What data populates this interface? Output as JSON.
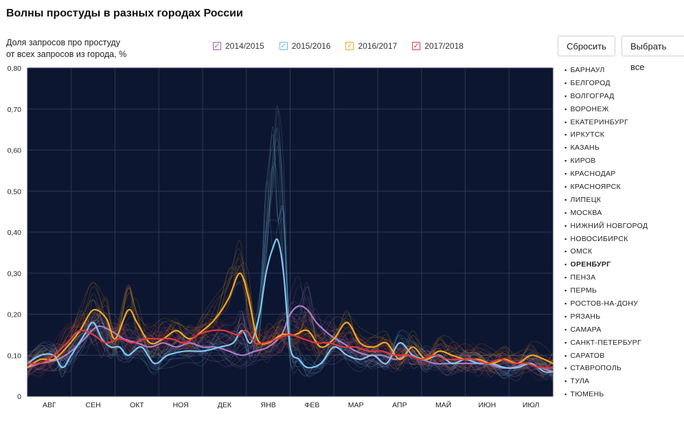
{
  "title": "Волны простуды в разных городах России",
  "ylabel_line1": "Доля запросов про простуду",
  "ylabel_line2": "от всех запросов из города, %",
  "buttons": {
    "reset": "Сбросить",
    "select_all": "Выбрать все"
  },
  "legend": [
    {
      "label": "2014/2015",
      "color": "#9b59b6"
    },
    {
      "label": "2015/2016",
      "color": "#67b8e3"
    },
    {
      "label": "2016/2017",
      "color": "#f5a623"
    },
    {
      "label": "2017/2018",
      "color": "#e0393e"
    }
  ],
  "cities": [
    "БАРНАУЛ",
    "БЕЛГОРОД",
    "ВОЛГОГРАД",
    "ВОРОНЕЖ",
    "ЕКАТЕРИНБУРГ",
    "ИРКУТСК",
    "КАЗАНЬ",
    "КИРОВ",
    "КРАСНОДАР",
    "КРАСНОЯРСК",
    "ЛИПЕЦК",
    "МОСКВА",
    "НИЖНИЙ НОВГОРОД",
    "НОВОСИБИРСК",
    "ОМСК",
    "ОРЕНБУРГ",
    "ПЕНЗА",
    "ПЕРМЬ",
    "РОСТОВ-НА-ДОНУ",
    "РЯЗАНЬ",
    "САМАРА",
    "САНКТ-ПЕТЕРБУРГ",
    "САРАТОВ",
    "СТАВРОПОЛЬ",
    "ТУЛА",
    "ТЮМЕНЬ"
  ],
  "selected_city": "ОРЕНБУРГ",
  "chart_data": {
    "type": "line",
    "background": "#0d1630",
    "x_ticks": [
      "АВГ",
      "СЕН",
      "ОКТ",
      "НОЯ",
      "ДЕК",
      "ЯНВ",
      "ФЕВ",
      "МАР",
      "АПР",
      "МАЙ",
      "ИЮН",
      "ИЮЛ"
    ],
    "y_ticks": [
      "0",
      "0,10",
      "0,20",
      "0,30",
      "0,40",
      "0,50",
      "0,60",
      "0,70",
      "0,80"
    ],
    "ylim": [
      0,
      0.8
    ],
    "x_range_months": [
      0,
      12
    ],
    "series": [
      {
        "name": "2014/2015",
        "color": "#b07cc6",
        "points": [
          [
            0,
            0.07
          ],
          [
            0.3,
            0.08
          ],
          [
            0.7,
            0.09
          ],
          [
            1.0,
            0.11
          ],
          [
            1.3,
            0.14
          ],
          [
            1.6,
            0.17
          ],
          [
            1.9,
            0.16
          ],
          [
            2.2,
            0.14
          ],
          [
            2.5,
            0.13
          ],
          [
            2.8,
            0.12
          ],
          [
            3.1,
            0.13
          ],
          [
            3.4,
            0.12
          ],
          [
            3.7,
            0.13
          ],
          [
            4.0,
            0.12
          ],
          [
            4.3,
            0.12
          ],
          [
            4.6,
            0.11
          ],
          [
            4.9,
            0.1
          ],
          [
            5.2,
            0.11
          ],
          [
            5.5,
            0.12
          ],
          [
            5.8,
            0.15
          ],
          [
            6.0,
            0.2
          ],
          [
            6.2,
            0.22
          ],
          [
            6.4,
            0.21
          ],
          [
            6.6,
            0.18
          ],
          [
            6.9,
            0.15
          ],
          [
            7.2,
            0.13
          ],
          [
            7.5,
            0.11
          ],
          [
            7.8,
            0.1
          ],
          [
            8.1,
            0.1
          ],
          [
            8.4,
            0.09
          ],
          [
            8.7,
            0.1
          ],
          [
            9.0,
            0.09
          ],
          [
            9.3,
            0.08
          ],
          [
            9.6,
            0.08
          ],
          [
            9.9,
            0.08
          ],
          [
            10.2,
            0.08
          ],
          [
            10.5,
            0.08
          ],
          [
            10.8,
            0.07
          ],
          [
            11.1,
            0.07
          ],
          [
            11.4,
            0.08
          ],
          [
            11.7,
            0.07
          ],
          [
            12.0,
            0.06
          ]
        ]
      },
      {
        "name": "2015/2016",
        "color": "#7ec8f0",
        "points": [
          [
            0,
            0.08
          ],
          [
            0.3,
            0.1
          ],
          [
            0.6,
            0.1
          ],
          [
            0.8,
            0.07
          ],
          [
            1.0,
            0.1
          ],
          [
            1.3,
            0.15
          ],
          [
            1.5,
            0.18
          ],
          [
            1.7,
            0.14
          ],
          [
            1.9,
            0.12
          ],
          [
            2.1,
            0.12
          ],
          [
            2.3,
            0.1
          ],
          [
            2.6,
            0.12
          ],
          [
            2.9,
            0.08
          ],
          [
            3.2,
            0.1
          ],
          [
            3.6,
            0.11
          ],
          [
            4.0,
            0.11
          ],
          [
            4.4,
            0.12
          ],
          [
            4.7,
            0.13
          ],
          [
            4.9,
            0.16
          ],
          [
            5.1,
            0.13
          ],
          [
            5.3,
            0.2
          ],
          [
            5.45,
            0.3
          ],
          [
            5.6,
            0.36
          ],
          [
            5.72,
            0.38
          ],
          [
            5.85,
            0.3
          ],
          [
            6.0,
            0.12
          ],
          [
            6.2,
            0.09
          ],
          [
            6.4,
            0.07
          ],
          [
            6.7,
            0.08
          ],
          [
            7.0,
            0.12
          ],
          [
            7.3,
            0.1
          ],
          [
            7.6,
            0.09
          ],
          [
            7.9,
            0.1
          ],
          [
            8.2,
            0.08
          ],
          [
            8.5,
            0.13
          ],
          [
            8.8,
            0.1
          ],
          [
            9.1,
            0.09
          ],
          [
            9.4,
            0.1
          ],
          [
            9.7,
            0.08
          ],
          [
            10.0,
            0.09
          ],
          [
            10.3,
            0.08
          ],
          [
            10.6,
            0.08
          ],
          [
            10.9,
            0.07
          ],
          [
            11.2,
            0.07
          ],
          [
            11.5,
            0.08
          ],
          [
            11.8,
            0.06
          ],
          [
            12.0,
            0.06
          ]
        ]
      },
      {
        "name": "2016/2017",
        "color": "#f5a623",
        "points": [
          [
            0,
            0.07
          ],
          [
            0.3,
            0.09
          ],
          [
            0.6,
            0.09
          ],
          [
            0.9,
            0.12
          ],
          [
            1.2,
            0.16
          ],
          [
            1.5,
            0.21
          ],
          [
            1.8,
            0.19
          ],
          [
            2.0,
            0.14
          ],
          [
            2.3,
            0.21
          ],
          [
            2.5,
            0.18
          ],
          [
            2.8,
            0.13
          ],
          [
            3.1,
            0.14
          ],
          [
            3.4,
            0.16
          ],
          [
            3.7,
            0.14
          ],
          [
            4.0,
            0.16
          ],
          [
            4.3,
            0.19
          ],
          [
            4.6,
            0.24
          ],
          [
            4.85,
            0.3
          ],
          [
            5.05,
            0.24
          ],
          [
            5.25,
            0.14
          ],
          [
            5.5,
            0.13
          ],
          [
            5.8,
            0.15
          ],
          [
            6.1,
            0.15
          ],
          [
            6.4,
            0.16
          ],
          [
            6.7,
            0.12
          ],
          [
            7.0,
            0.14
          ],
          [
            7.3,
            0.18
          ],
          [
            7.6,
            0.13
          ],
          [
            7.9,
            0.12
          ],
          [
            8.2,
            0.13
          ],
          [
            8.5,
            0.09
          ],
          [
            8.8,
            0.12
          ],
          [
            9.1,
            0.09
          ],
          [
            9.4,
            0.11
          ],
          [
            9.7,
            0.1
          ],
          [
            10.0,
            0.09
          ],
          [
            10.3,
            0.09
          ],
          [
            10.6,
            0.08
          ],
          [
            10.9,
            0.09
          ],
          [
            11.2,
            0.08
          ],
          [
            11.5,
            0.1
          ],
          [
            11.8,
            0.09
          ],
          [
            12.0,
            0.08
          ]
        ]
      },
      {
        "name": "2017/2018",
        "color": "#e0393e",
        "points": [
          [
            0,
            0.08
          ],
          [
            0.3,
            0.08
          ],
          [
            0.6,
            0.1
          ],
          [
            0.9,
            0.13
          ],
          [
            1.2,
            0.16
          ],
          [
            1.5,
            0.15
          ],
          [
            1.8,
            0.13
          ],
          [
            2.1,
            0.14
          ],
          [
            2.4,
            0.13
          ],
          [
            2.7,
            0.14
          ],
          [
            3.0,
            0.14
          ],
          [
            3.3,
            0.14
          ],
          [
            3.6,
            0.13
          ],
          [
            3.9,
            0.15
          ],
          [
            4.2,
            0.16
          ],
          [
            4.5,
            0.16
          ],
          [
            4.8,
            0.15
          ],
          [
            5.0,
            0.16
          ],
          [
            5.2,
            0.13
          ],
          [
            5.4,
            0.13
          ],
          [
            5.7,
            0.14
          ],
          [
            6.0,
            0.15
          ],
          [
            6.3,
            0.14
          ],
          [
            6.6,
            0.13
          ],
          [
            6.9,
            0.13
          ],
          [
            7.2,
            0.12
          ],
          [
            7.5,
            0.12
          ],
          [
            7.8,
            0.11
          ],
          [
            8.1,
            0.11
          ],
          [
            8.4,
            0.1
          ],
          [
            8.7,
            0.1
          ],
          [
            9.0,
            0.09
          ],
          [
            9.3,
            0.1
          ],
          [
            9.6,
            0.09
          ],
          [
            9.9,
            0.09
          ],
          [
            10.2,
            0.09
          ],
          [
            10.5,
            0.08
          ],
          [
            10.8,
            0.09
          ],
          [
            11.1,
            0.08
          ],
          [
            11.4,
            0.08
          ],
          [
            11.7,
            0.07
          ],
          [
            12.0,
            0.07
          ]
        ]
      }
    ]
  }
}
